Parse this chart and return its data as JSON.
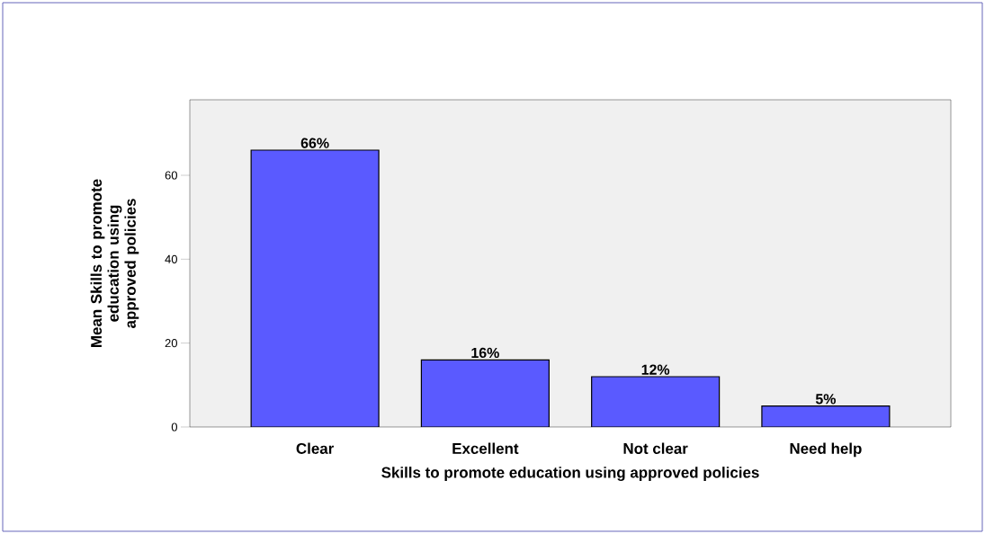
{
  "chart_data": {
    "type": "bar",
    "xlabel": "Skills to promote education using approved policies",
    "ylabel": "Mean Skills to promote education using approved policies",
    "categories": [
      "Clear",
      "Excellent",
      "Not clear",
      "Need help"
    ],
    "values": [
      66,
      16,
      12,
      5
    ],
    "value_labels": [
      "66%",
      "16%",
      "12%",
      "5%"
    ],
    "color": "#5a5aff",
    "ylim": [
      0,
      78
    ],
    "yticks": [
      0,
      20,
      40,
      60
    ],
    "grid": false
  }
}
